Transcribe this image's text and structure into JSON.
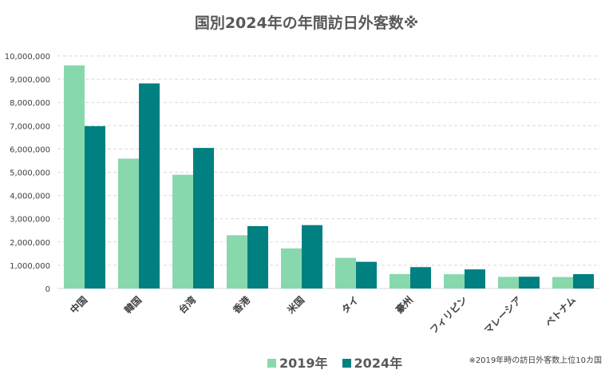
{
  "chart_data": {
    "type": "bar",
    "title": "国別2024年の年間訪日外客数※",
    "categories": [
      "中国",
      "韓国",
      "台湾",
      "香港",
      "米国",
      "タイ",
      "豪州",
      "フィリピン",
      "マレーシア",
      "ベトナム"
    ],
    "series": [
      {
        "name": "2019年",
        "color": "#88d8ad",
        "values": [
          9594394,
          5584597,
          4890602,
          2290792,
          1723861,
          1318977,
          621771,
          613114,
          501592,
          495051
        ]
      },
      {
        "name": "2024年",
        "color": "#008080",
        "values": [
          6981200,
          8817765,
          6044400,
          2683500,
          2724600,
          1148000,
          920000,
          822000,
          506800,
          616600
        ]
      }
    ],
    "ylim": [
      0,
      10000000
    ],
    "yticks": [
      "0",
      "1,000,000",
      "2,000,000",
      "3,000,000",
      "4,000,000",
      "5,000,000",
      "6,000,000",
      "7,000,000",
      "8,000,000",
      "9,000,000",
      "10,000,000"
    ],
    "grid": true,
    "legend": "bottom",
    "note": "※2019年時の訪日外客数上位10カ国"
  }
}
